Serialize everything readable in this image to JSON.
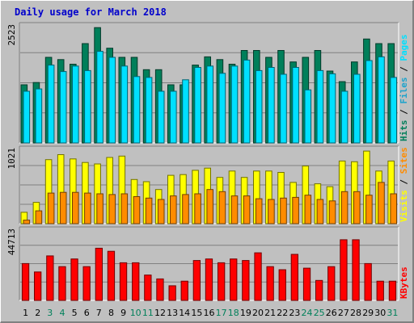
{
  "title": "Daily usage for March 2018",
  "chart_data": {
    "type": "bar",
    "categories": [
      "1",
      "2",
      "3",
      "4",
      "5",
      "6",
      "7",
      "8",
      "9",
      "10",
      "11",
      "12",
      "13",
      "14",
      "15",
      "16",
      "17",
      "18",
      "19",
      "20",
      "21",
      "22",
      "23",
      "24",
      "25",
      "26",
      "27",
      "28",
      "29",
      "30",
      "31"
    ],
    "weekend_days": [
      "3",
      "4",
      "10",
      "11",
      "17",
      "18",
      "24",
      "25",
      "31"
    ],
    "colors": {
      "hits": "#007f5a",
      "files": "#00e0ff",
      "pages": "#1ca3cc",
      "visits": "#ffff00",
      "sites": "#ff8c00",
      "kbytes": "#ff0000",
      "weekday_label": "#000000",
      "weekend_label": "#00805a"
    },
    "panels": [
      {
        "name": "hits-files-pages",
        "max_label": "2523",
        "ymax": 2523,
        "legend": [
          {
            "text": "Hits",
            "color": "#007f5a"
          },
          {
            "text": "Files",
            "color": "#1ca3cc"
          },
          {
            "text": "Pages",
            "color": "#00e0ff"
          }
        ],
        "series": [
          {
            "name": "Hits",
            "color": "#007f5a",
            "values": [
              1270,
              1320,
              1870,
              1820,
              1720,
              2170,
              2520,
              2070,
              1870,
              1870,
              1600,
              1600,
              1270,
              1270,
              1700,
              1880,
              1820,
              1720,
              2020,
              2020,
              1870,
              2020,
              1770,
              1870,
              2020,
              1570,
              1340,
              1770,
              2270,
              2170,
              2170
            ]
          },
          {
            "name": "Files",
            "color": "#00e0ff",
            "values": [
              1130,
              1180,
              1700,
              1560,
              1680,
              1580,
              2000,
              1870,
              1680,
              1450,
              1430,
              1130,
              1130,
              1380,
              1650,
              1680,
              1520,
              1680,
              1810,
              1580,
              1650,
              1500,
              1650,
              1160,
              1580,
              1510,
              1130,
              1500,
              1800,
              1880,
              1430
            ]
          }
        ]
      },
      {
        "name": "visits-sites",
        "max_label": "1021",
        "ymax": 1021,
        "legend": [
          {
            "text": "Visits",
            "color": "#ffff00"
          },
          {
            "text": "Sites",
            "color": "#ff8c00"
          }
        ],
        "series": [
          {
            "name": "Visits",
            "color": "#ffff00",
            "values": [
              160,
              300,
              900,
              970,
              910,
              860,
              840,
              930,
              950,
              620,
              590,
              480,
              680,
              690,
              750,
              780,
              650,
              740,
              650,
              740,
              740,
              720,
              580,
              810,
              560,
              520,
              880,
              870,
              1020,
              740,
              880
            ]
          },
          {
            "name": "Sites",
            "color": "#ff8c00",
            "values": [
              50,
              180,
              430,
              440,
              440,
              430,
              420,
              410,
              420,
              380,
              360,
              340,
              390,
              410,
              420,
              480,
              450,
              390,
              390,
              350,
              340,
              360,
              370,
              400,
              340,
              320,
              450,
              450,
              400,
              580,
              420
            ]
          }
        ]
      },
      {
        "name": "kbytes",
        "max_label": "44713",
        "ymax": 44713,
        "legend": [
          {
            "text": "KBytes",
            "color": "#ff0000"
          }
        ],
        "series": [
          {
            "name": "KBytes",
            "color": "#ff0000",
            "values": [
              24000,
              18500,
              29000,
              22000,
              27000,
              22000,
              34000,
              32000,
              24500,
              24500,
              16500,
              14000,
              9500,
              12500,
              26000,
              27000,
              24500,
              27000,
              26000,
              31000,
              22000,
              20000,
              30000,
              21000,
              13000,
              22000,
              39500,
              39500,
              24000,
              12500,
              12500
            ]
          }
        ]
      }
    ]
  }
}
